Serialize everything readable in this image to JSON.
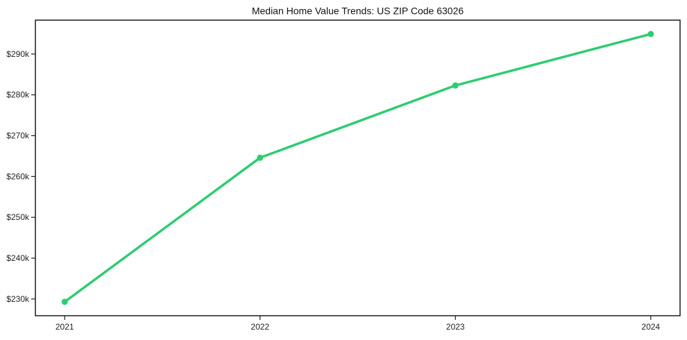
{
  "chart_data": {
    "type": "line",
    "title": "Median Home Value Trends: US ZIP Code 63026",
    "x": [
      2021,
      2022,
      2023,
      2024
    ],
    "x_tick_labels": [
      "2021",
      "2022",
      "2023",
      "2024"
    ],
    "values": [
      229300,
      264600,
      282300,
      294900
    ],
    "values_unit": "USD",
    "y_ticks": [
      230000,
      240000,
      250000,
      260000,
      270000,
      280000,
      290000
    ],
    "y_tick_labels": [
      "$230k",
      "$240k",
      "$250k",
      "$260k",
      "$270k",
      "$280k",
      "$290k"
    ],
    "xlim": [
      2020.85,
      2024.15
    ],
    "ylim": [
      225900,
      298300
    ],
    "xlabel": "",
    "ylabel": "",
    "grid": false,
    "legend": "none",
    "line_color": "#2ecc71",
    "marker": "circle",
    "axis_color": "#1a1a1a",
    "tick_label_color": "#222222",
    "background_color": "#ffffff"
  }
}
